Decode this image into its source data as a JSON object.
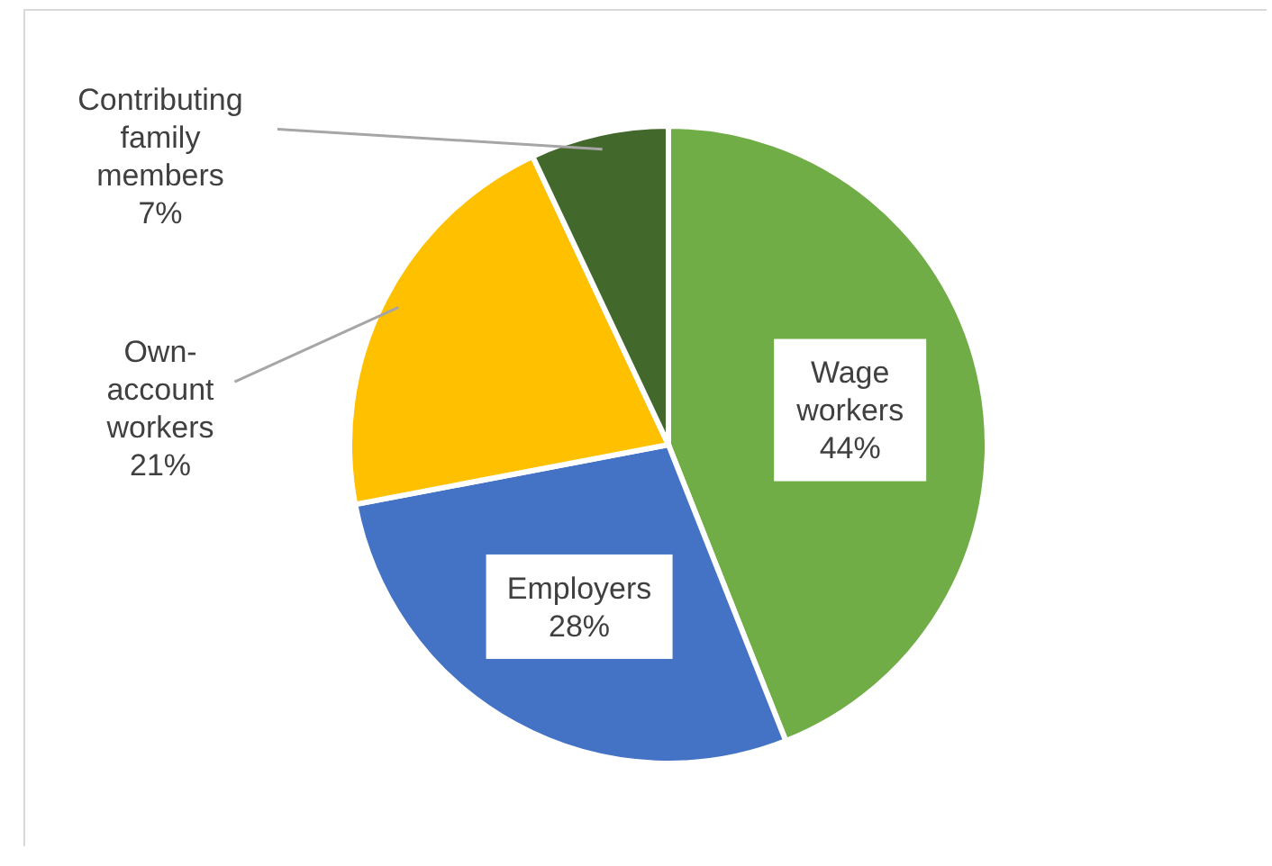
{
  "chart_data": {
    "type": "pie",
    "categories": [
      "Wage workers",
      "Employers",
      "Own-account workers",
      "Contributing family members"
    ],
    "values": [
      44,
      28,
      21,
      7
    ],
    "colors": [
      "#70ad47",
      "#4472c4",
      "#ffc000",
      "#43682b"
    ],
    "value_labels": [
      "44%",
      "28%",
      "21%",
      "7%"
    ]
  }
}
